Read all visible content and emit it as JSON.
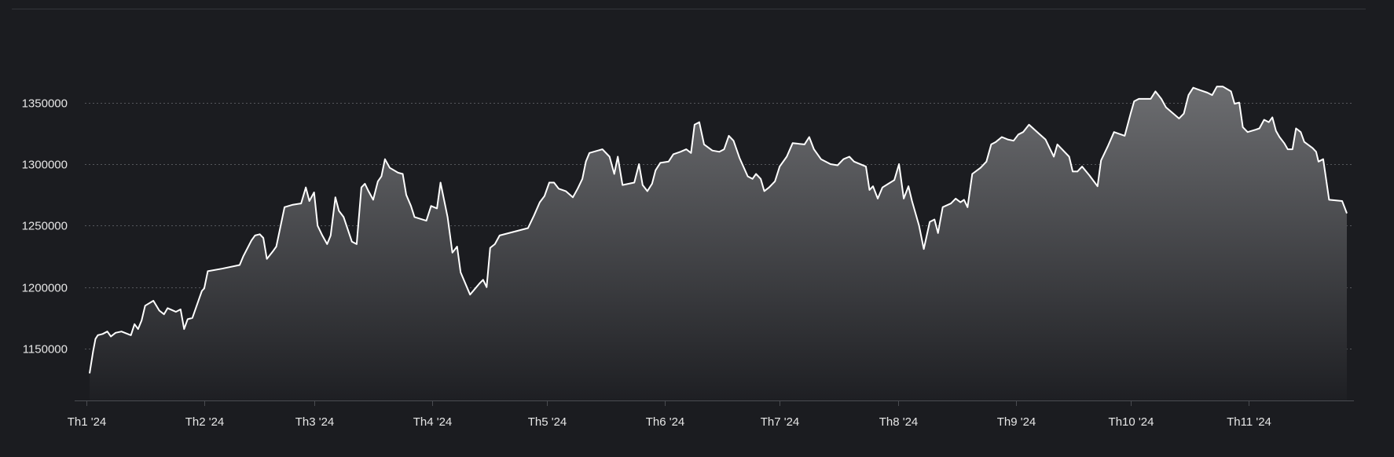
{
  "chart_data": {
    "type": "area",
    "title": "",
    "xlabel": "",
    "ylabel": "",
    "grid": true,
    "legend": "none",
    "colors": {
      "background": "#1b1c20",
      "line": "#ffffff",
      "fill_top": "#6c6d70",
      "fill_bottom": "#1e1f23",
      "grid": "#55575c",
      "axis": "#4a4c51",
      "text": "#e6e6e6"
    },
    "ylim": [
      1108000,
      1395000
    ],
    "y_ticks": [
      {
        "value": 1150000,
        "label": "1150000"
      },
      {
        "value": 1200000,
        "label": "1200000"
      },
      {
        "value": 1250000,
        "label": "1250000"
      },
      {
        "value": 1300000,
        "label": "1300000"
      },
      {
        "value": 1350000,
        "label": "1350000"
      }
    ],
    "xlim": [
      -0.01,
      10.73
    ],
    "x_ticks": [
      {
        "value": 0.0,
        "label": "Th1 '24"
      },
      {
        "value": 1.0,
        "label": "Th2 '24"
      },
      {
        "value": 1.93,
        "label": "Th3 '24"
      },
      {
        "value": 2.93,
        "label": "Th4 '24"
      },
      {
        "value": 3.9,
        "label": "Th5 '24"
      },
      {
        "value": 4.9,
        "label": "Th6 '24"
      },
      {
        "value": 5.87,
        "label": "Th7 '24"
      },
      {
        "value": 6.87,
        "label": "Th8 '24"
      },
      {
        "value": 7.87,
        "label": "Th9 '24"
      },
      {
        "value": 8.84,
        "label": "Th10 '24"
      },
      {
        "value": 9.84,
        "label": "Th11 '24"
      }
    ],
    "series": [
      {
        "points": [
          [
            0.03,
            1130000
          ],
          [
            0.06,
            1148000
          ],
          [
            0.08,
            1158000
          ],
          [
            0.1,
            1161000
          ],
          [
            0.14,
            1162000
          ],
          [
            0.18,
            1164000
          ],
          [
            0.21,
            1160000
          ],
          [
            0.25,
            1163000
          ],
          [
            0.3,
            1164000
          ],
          [
            0.38,
            1161000
          ],
          [
            0.41,
            1170000
          ],
          [
            0.44,
            1166000
          ],
          [
            0.47,
            1173000
          ],
          [
            0.5,
            1185000
          ],
          [
            0.57,
            1189000
          ],
          [
            0.62,
            1181000
          ],
          [
            0.66,
            1178000
          ],
          [
            0.69,
            1183000
          ],
          [
            0.76,
            1180000
          ],
          [
            0.8,
            1182000
          ],
          [
            0.83,
            1166000
          ],
          [
            0.86,
            1174000
          ],
          [
            0.9,
            1175000
          ],
          [
            0.98,
            1197000
          ],
          [
            1.0,
            1199000
          ],
          [
            1.03,
            1213000
          ],
          [
            1.15,
            1215000
          ],
          [
            1.3,
            1218000
          ],
          [
            1.33,
            1225000
          ],
          [
            1.4,
            1238000
          ],
          [
            1.43,
            1242000
          ],
          [
            1.47,
            1243000
          ],
          [
            1.5,
            1240000
          ],
          [
            1.53,
            1223000
          ],
          [
            1.58,
            1229000
          ],
          [
            1.61,
            1233000
          ],
          [
            1.68,
            1265000
          ],
          [
            1.75,
            1267000
          ],
          [
            1.82,
            1268000
          ],
          [
            1.86,
            1281000
          ],
          [
            1.89,
            1270000
          ],
          [
            1.93,
            1277000
          ],
          [
            1.96,
            1250000
          ],
          [
            2.0,
            1242000
          ],
          [
            2.04,
            1235000
          ],
          [
            2.07,
            1242000
          ],
          [
            2.11,
            1273000
          ],
          [
            2.14,
            1262000
          ],
          [
            2.18,
            1257000
          ],
          [
            2.25,
            1237000
          ],
          [
            2.29,
            1235000
          ],
          [
            2.33,
            1281000
          ],
          [
            2.36,
            1284000
          ],
          [
            2.39,
            1278000
          ],
          [
            2.43,
            1271000
          ],
          [
            2.47,
            1286000
          ],
          [
            2.5,
            1290000
          ],
          [
            2.53,
            1304000
          ],
          [
            2.57,
            1297000
          ],
          [
            2.64,
            1293000
          ],
          [
            2.68,
            1292000
          ],
          [
            2.71,
            1275000
          ],
          [
            2.75,
            1266000
          ],
          [
            2.78,
            1257000
          ],
          [
            2.88,
            1254000
          ],
          [
            2.92,
            1266000
          ],
          [
            2.97,
            1264000
          ],
          [
            3.0,
            1285000
          ],
          [
            3.06,
            1257000
          ],
          [
            3.1,
            1228000
          ],
          [
            3.14,
            1233000
          ],
          [
            3.17,
            1212000
          ],
          [
            3.25,
            1194000
          ],
          [
            3.33,
            1203000
          ],
          [
            3.36,
            1206000
          ],
          [
            3.39,
            1200000
          ],
          [
            3.42,
            1232000
          ],
          [
            3.46,
            1235000
          ],
          [
            3.5,
            1242000
          ],
          [
            3.74,
            1248000
          ],
          [
            3.79,
            1258000
          ],
          [
            3.84,
            1269000
          ],
          [
            3.88,
            1274000
          ],
          [
            3.92,
            1285000
          ],
          [
            3.96,
            1285000
          ],
          [
            4.0,
            1280000
          ],
          [
            4.06,
            1278000
          ],
          [
            4.12,
            1273000
          ],
          [
            4.16,
            1280000
          ],
          [
            4.2,
            1288000
          ],
          [
            4.23,
            1302000
          ],
          [
            4.26,
            1309000
          ],
          [
            4.37,
            1312000
          ],
          [
            4.43,
            1306000
          ],
          [
            4.47,
            1292000
          ],
          [
            4.5,
            1306000
          ],
          [
            4.54,
            1283000
          ],
          [
            4.64,
            1285000
          ],
          [
            4.68,
            1300000
          ],
          [
            4.71,
            1283000
          ],
          [
            4.75,
            1278000
          ],
          [
            4.79,
            1284000
          ],
          [
            4.82,
            1295000
          ],
          [
            4.86,
            1301000
          ],
          [
            4.93,
            1302000
          ],
          [
            4.97,
            1308000
          ],
          [
            5.03,
            1310000
          ],
          [
            5.08,
            1312000
          ],
          [
            5.12,
            1309000
          ],
          [
            5.15,
            1332000
          ],
          [
            5.19,
            1334000
          ],
          [
            5.23,
            1316000
          ],
          [
            5.3,
            1311000
          ],
          [
            5.36,
            1310000
          ],
          [
            5.4,
            1312000
          ],
          [
            5.44,
            1323000
          ],
          [
            5.48,
            1319000
          ],
          [
            5.53,
            1305000
          ],
          [
            5.6,
            1290000
          ],
          [
            5.64,
            1288000
          ],
          [
            5.67,
            1292000
          ],
          [
            5.71,
            1288000
          ],
          [
            5.74,
            1278000
          ],
          [
            5.78,
            1281000
          ],
          [
            5.83,
            1286000
          ],
          [
            5.87,
            1298000
          ],
          [
            5.93,
            1306000
          ],
          [
            5.98,
            1317000
          ],
          [
            6.08,
            1316000
          ],
          [
            6.12,
            1322000
          ],
          [
            6.16,
            1312000
          ],
          [
            6.22,
            1304000
          ],
          [
            6.3,
            1300000
          ],
          [
            6.36,
            1299000
          ],
          [
            6.41,
            1304000
          ],
          [
            6.46,
            1306000
          ],
          [
            6.5,
            1302000
          ],
          [
            6.6,
            1298000
          ],
          [
            6.63,
            1279000
          ],
          [
            6.66,
            1282000
          ],
          [
            6.7,
            1272000
          ],
          [
            6.74,
            1281000
          ],
          [
            6.79,
            1284000
          ],
          [
            6.84,
            1287000
          ],
          [
            6.88,
            1300000
          ],
          [
            6.92,
            1272000
          ],
          [
            6.96,
            1282000
          ],
          [
            6.99,
            1270000
          ],
          [
            7.05,
            1250000
          ],
          [
            7.09,
            1231000
          ],
          [
            7.14,
            1253000
          ],
          [
            7.18,
            1255000
          ],
          [
            7.21,
            1244000
          ],
          [
            7.25,
            1265000
          ],
          [
            7.32,
            1268000
          ],
          [
            7.36,
            1272000
          ],
          [
            7.4,
            1269000
          ],
          [
            7.43,
            1271000
          ],
          [
            7.46,
            1265000
          ],
          [
            7.5,
            1292000
          ],
          [
            7.57,
            1297000
          ],
          [
            7.62,
            1302000
          ],
          [
            7.66,
            1316000
          ],
          [
            7.7,
            1318000
          ],
          [
            7.75,
            1322000
          ],
          [
            7.8,
            1320000
          ],
          [
            7.85,
            1319000
          ],
          [
            7.89,
            1324000
          ],
          [
            7.93,
            1326000
          ],
          [
            7.98,
            1332000
          ],
          [
            8.05,
            1326000
          ],
          [
            8.12,
            1320000
          ],
          [
            8.16,
            1312000
          ],
          [
            8.19,
            1306000
          ],
          [
            8.22,
            1316000
          ],
          [
            8.27,
            1311000
          ],
          [
            8.32,
            1306000
          ],
          [
            8.35,
            1294000
          ],
          [
            8.39,
            1294000
          ],
          [
            8.43,
            1298000
          ],
          [
            8.49,
            1291000
          ],
          [
            8.56,
            1282000
          ],
          [
            8.59,
            1303000
          ],
          [
            8.65,
            1315000
          ],
          [
            8.7,
            1326000
          ],
          [
            8.79,
            1323000
          ],
          [
            8.84,
            1341000
          ],
          [
            8.87,
            1351000
          ],
          [
            8.91,
            1353000
          ],
          [
            9.01,
            1353000
          ],
          [
            9.05,
            1359000
          ],
          [
            9.1,
            1353000
          ],
          [
            9.14,
            1346000
          ],
          [
            9.25,
            1337000
          ],
          [
            9.29,
            1341000
          ],
          [
            9.33,
            1356000
          ],
          [
            9.37,
            1362000
          ],
          [
            9.43,
            1360000
          ],
          [
            9.49,
            1358000
          ],
          [
            9.53,
            1356000
          ],
          [
            9.57,
            1363000
          ],
          [
            9.62,
            1363000
          ],
          [
            9.69,
            1359000
          ],
          [
            9.72,
            1349000
          ],
          [
            9.76,
            1350000
          ],
          [
            9.79,
            1330000
          ],
          [
            9.83,
            1326000
          ],
          [
            9.9,
            1328000
          ],
          [
            9.93,
            1329000
          ],
          [
            9.97,
            1336000
          ],
          [
            10.01,
            1334000
          ],
          [
            10.04,
            1338000
          ],
          [
            10.07,
            1327000
          ],
          [
            10.1,
            1322000
          ],
          [
            10.14,
            1317000
          ],
          [
            10.17,
            1312000
          ],
          [
            10.21,
            1312000
          ],
          [
            10.24,
            1329000
          ],
          [
            10.28,
            1326000
          ],
          [
            10.31,
            1318000
          ],
          [
            10.38,
            1313000
          ],
          [
            10.41,
            1310000
          ],
          [
            10.43,
            1302000
          ],
          [
            10.47,
            1304000
          ],
          [
            10.52,
            1271000
          ],
          [
            10.63,
            1270000
          ],
          [
            10.67,
            1260000
          ]
        ]
      }
    ]
  }
}
